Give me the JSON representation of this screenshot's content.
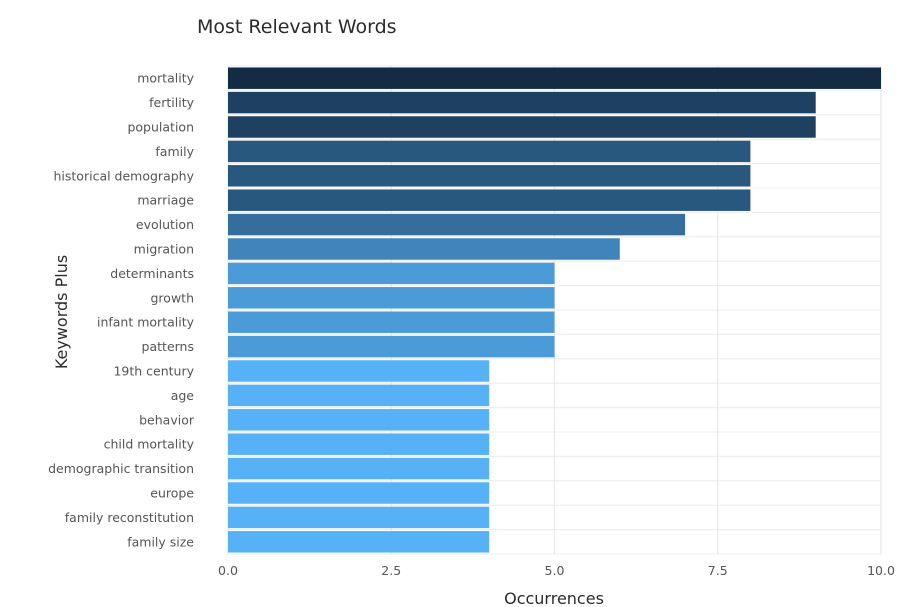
{
  "chart_data": {
    "type": "bar",
    "orientation": "horizontal",
    "title": "Most Relevant Words",
    "xlabel": "Occurrences",
    "ylabel": "Keywords Plus",
    "xlim": [
      0,
      10
    ],
    "xticks": [
      "0.0",
      "2.5",
      "5.0",
      "7.5",
      "10.0"
    ],
    "grid": true,
    "color_low": "#56B1F7",
    "color_high": "#132B43",
    "categories": [
      "mortality",
      "fertility",
      "population",
      "family",
      "historical demography",
      "marriage",
      "evolution",
      "migration",
      "determinants",
      "growth",
      "infant mortality",
      "patterns",
      "19th century",
      "age",
      "behavior",
      "child mortality",
      "demographic transition",
      "europe",
      "family reconstitution",
      "family size"
    ],
    "values": [
      10,
      9,
      9,
      8,
      8,
      8,
      7,
      6,
      5,
      5,
      5,
      5,
      4,
      4,
      4,
      4,
      4,
      4,
      4,
      4
    ]
  }
}
